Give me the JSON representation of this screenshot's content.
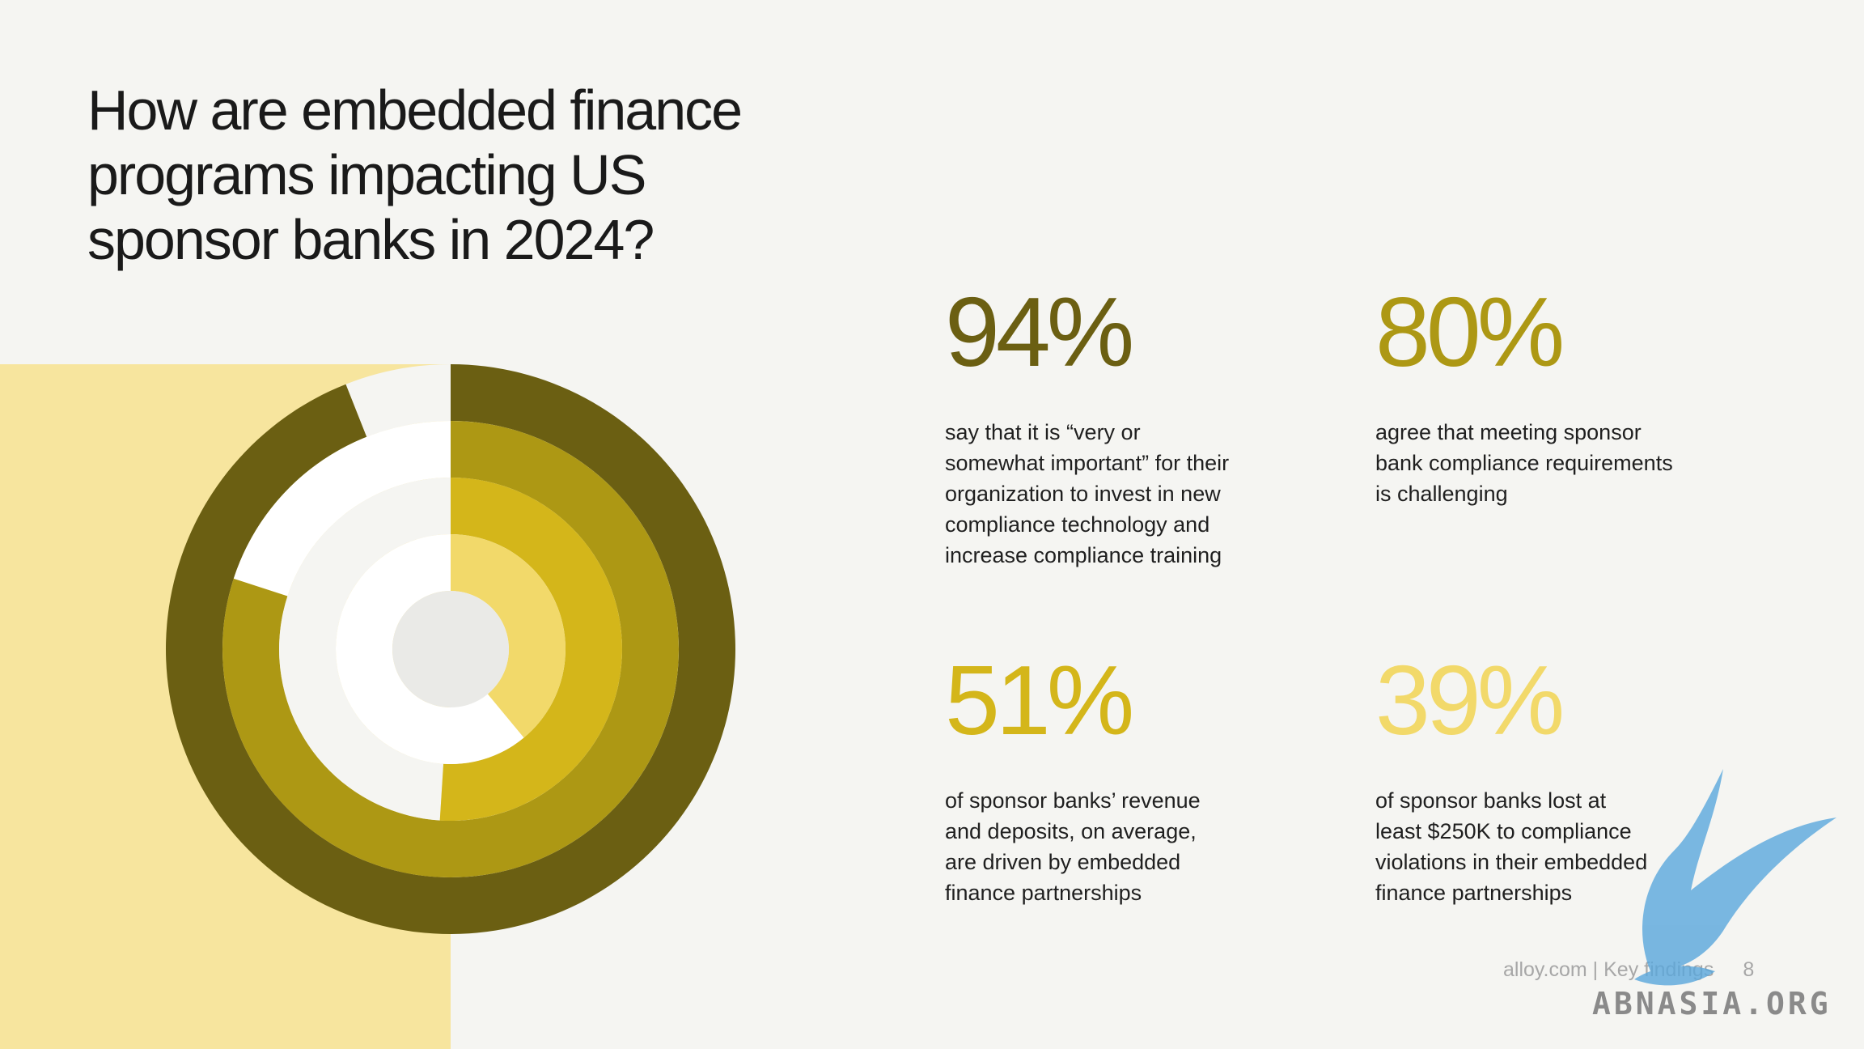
{
  "title": "How are embedded finance\nprograms impacting US\nsponsor banks in 2024?",
  "chart_data": {
    "type": "radial-bar",
    "max": 100,
    "series": [
      {
        "value": 94,
        "color": "#6b5f12"
      },
      {
        "value": 80,
        "color": "#ad9814"
      },
      {
        "value": 51,
        "color": "#d4b61a"
      },
      {
        "value": 39,
        "color": "#f2d96a"
      }
    ],
    "track_colors": [
      "#f5f5f2",
      "#ffffff",
      "#f5f5f2",
      "#ffffff"
    ],
    "center_color": "#eaeae7"
  },
  "stats": [
    {
      "value": "94%",
      "color": "#6b5f12",
      "description": "say that it is “very or\nsomewhat important” for their\norganization to invest in new\ncompliance technology and\nincrease compliance training"
    },
    {
      "value": "80%",
      "color": "#ad9814",
      "description": "agree that meeting sponsor\nbank compliance requirements\nis challenging"
    },
    {
      "value": "51%",
      "color": "#d4b61a",
      "description": "of sponsor banks’ revenue\nand deposits, on average,\nare driven by embedded\nfinance partnerships"
    },
    {
      "value": "39%",
      "color": "#f2d96a",
      "description": "of sponsor banks lost at\nleast $250K to compliance\nviolations in their embedded\nfinance partnerships"
    }
  ],
  "footer": {
    "text": "alloy.com | Key findings",
    "page": "8"
  },
  "watermark": {
    "text": "ABNASIA.ORG"
  }
}
